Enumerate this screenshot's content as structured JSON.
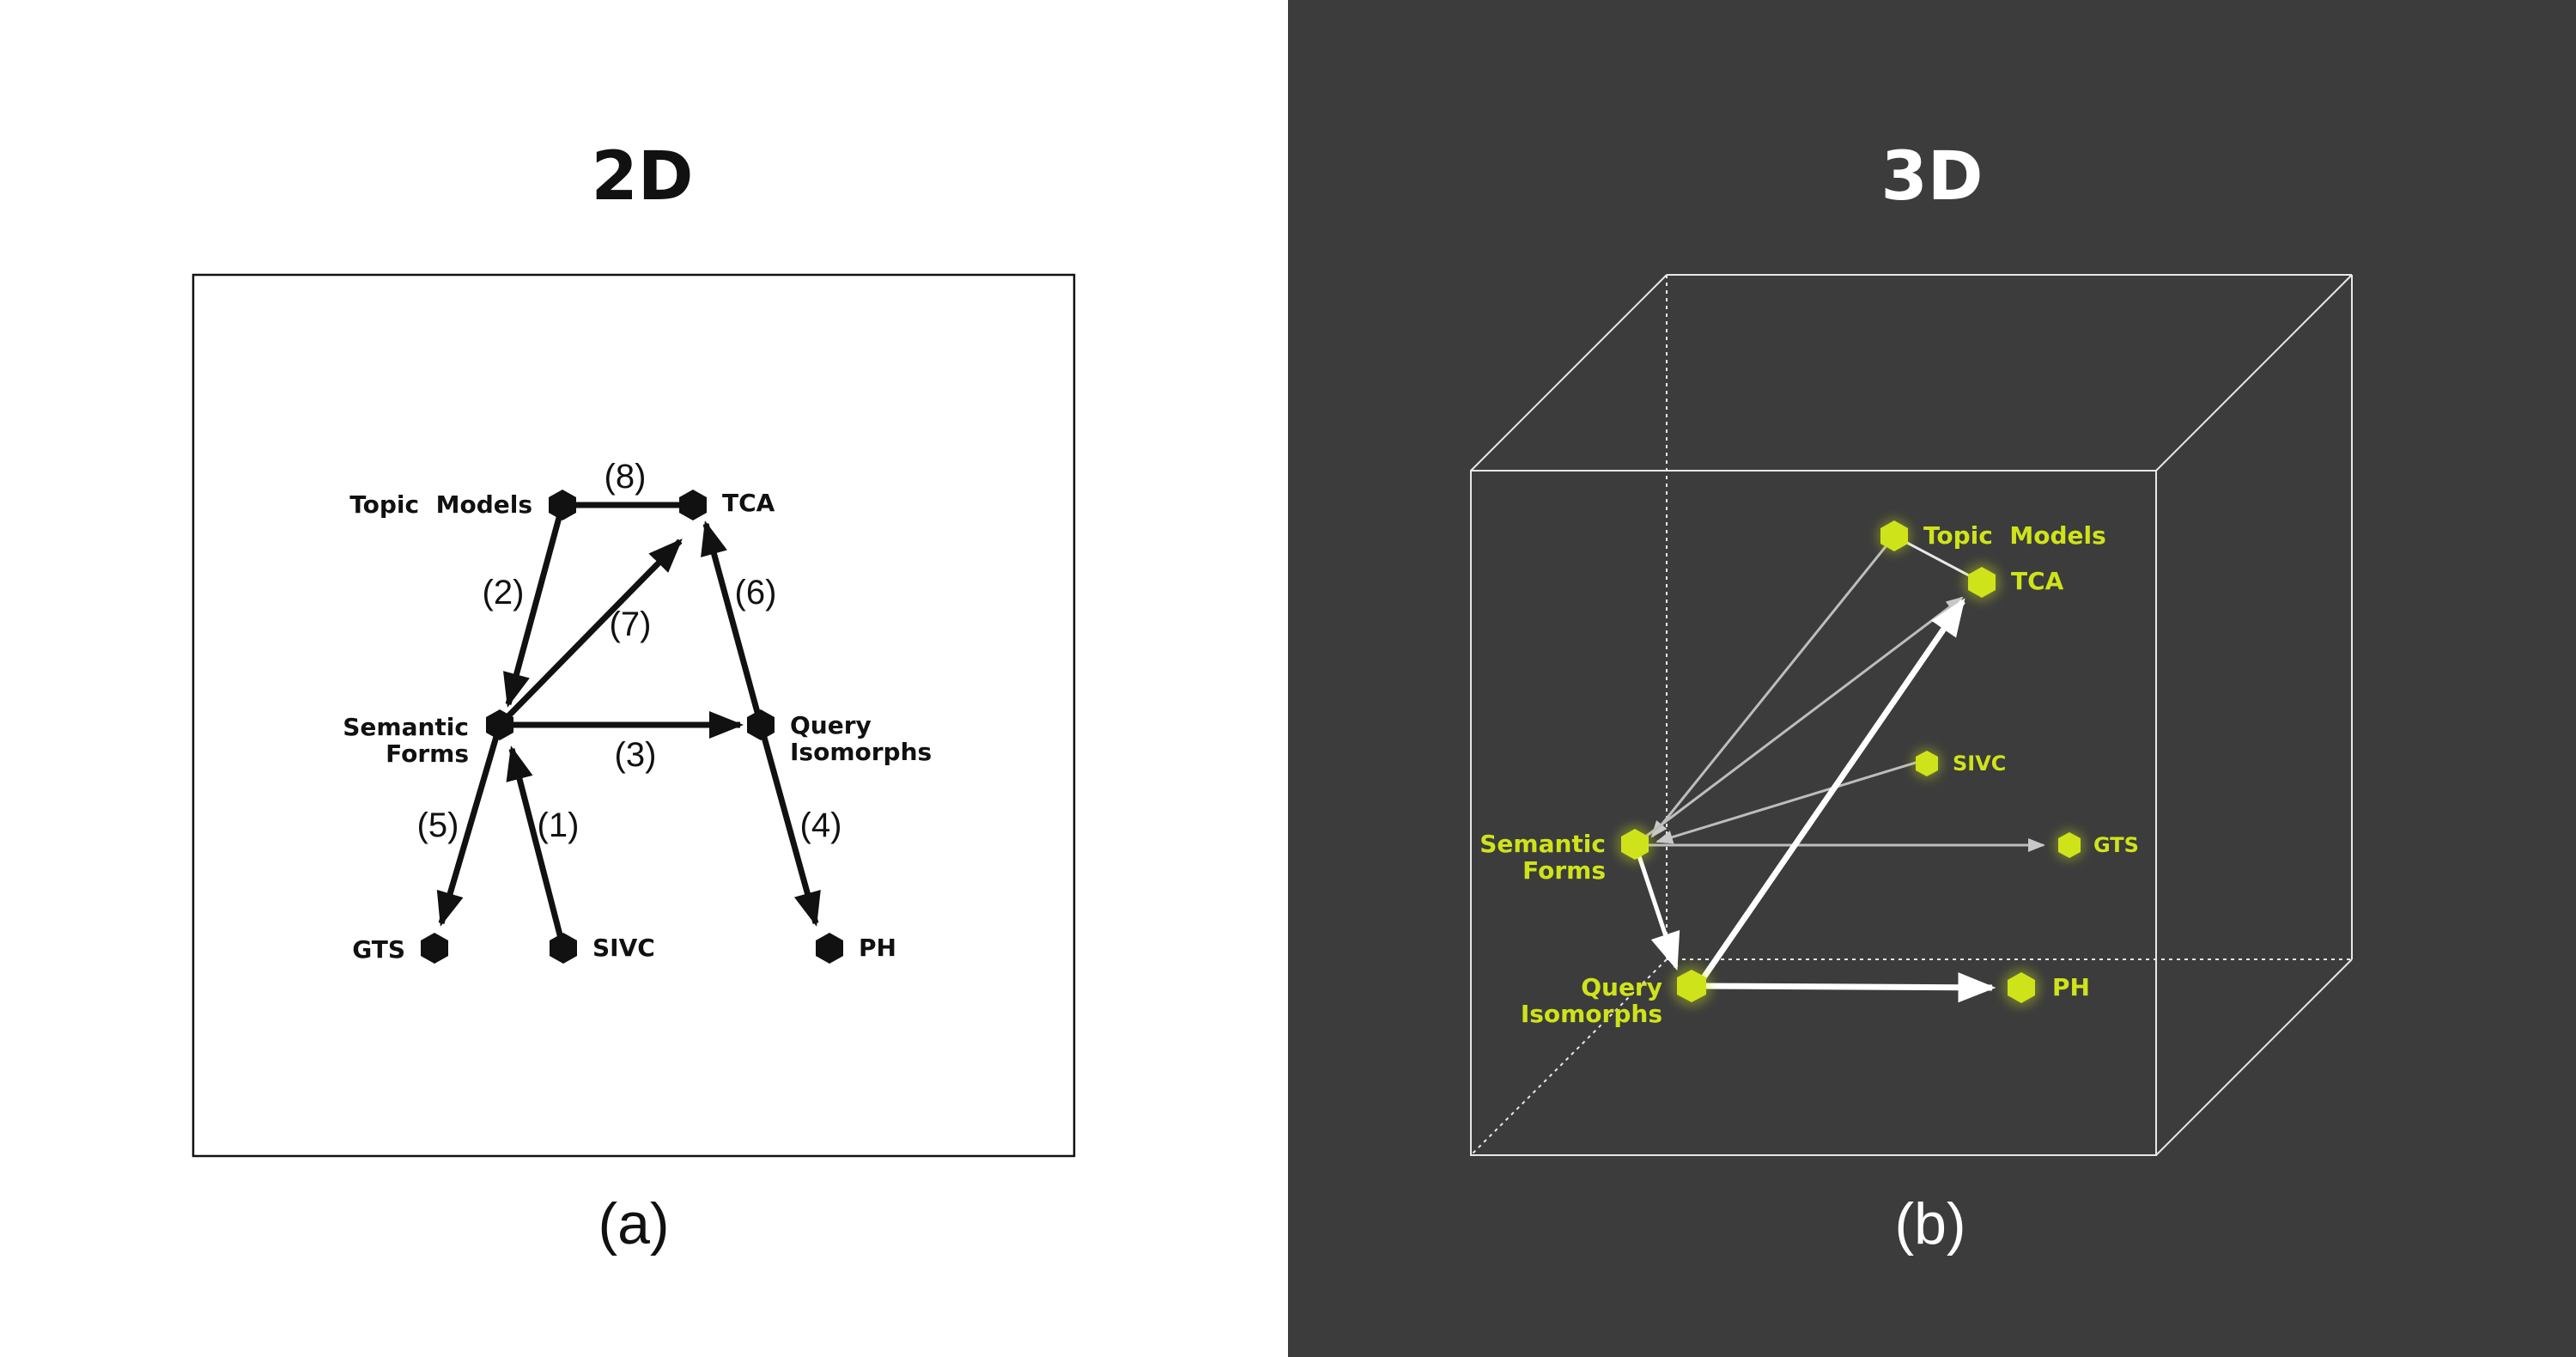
{
  "panel_2d": {
    "title": "2D",
    "caption": "(a)",
    "nodes": {
      "topic_models": "Topic  Models",
      "tca": "TCA",
      "semantic_forms_1": "Semantic",
      "semantic_forms_2": "Forms",
      "query_isomorphs_1": "Query",
      "query_isomorphs_2": "Isomorphs",
      "gts": "GTS",
      "sivc": "SIVC",
      "ph": "PH"
    },
    "edges": {
      "e1": "(1)",
      "e2": "(2)",
      "e3": "(3)",
      "e4": "(4)",
      "e5": "(5)",
      "e6": "(6)",
      "e7": "(7)",
      "e8": "(8)"
    }
  },
  "panel_3d": {
    "title": "3D",
    "caption": "(b)",
    "node_color": "#cfe31a",
    "nodes": {
      "topic_models": "Topic  Models",
      "tca": "TCA",
      "sivc": "SIVC",
      "semantic_forms_1": "Semantic",
      "semantic_forms_2": "Forms",
      "gts": "GTS",
      "query_isomorphs_1": "Query",
      "query_isomorphs_2": "Isomorphs",
      "ph": "PH"
    }
  }
}
